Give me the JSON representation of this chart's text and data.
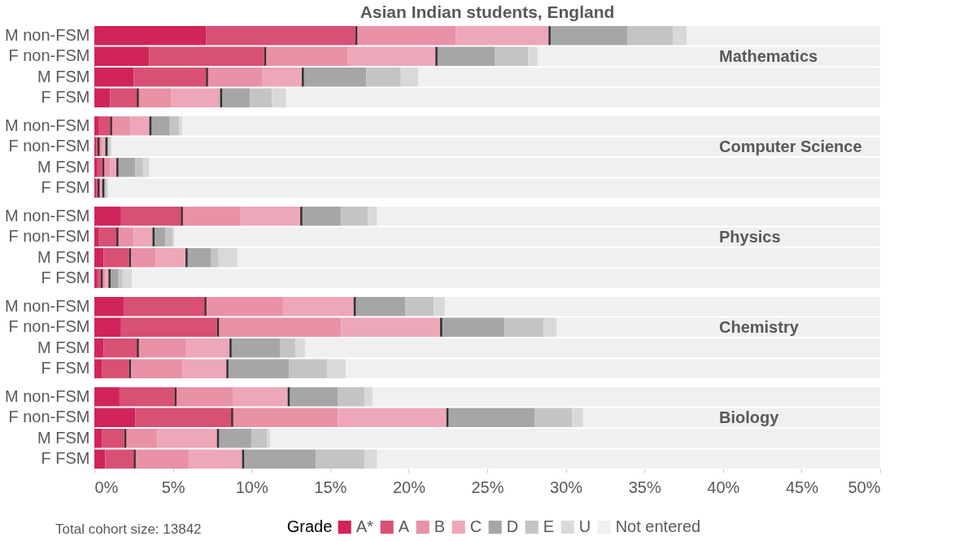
{
  "chart_data": [
    {
      "type": "bar",
      "orientation": "horizontal",
      "stacked": true,
      "title": "Asian Indian students, England",
      "annotations": [
        "Mathematics"
      ],
      "categories": [
        "M non-FSM",
        "F non-FSM",
        "M FSM",
        "F FSM"
      ],
      "xlim": [
        0,
        50
      ],
      "tick_labels": "y",
      "grid": false,
      "legend": false,
      "series": [
        {
          "color": "#d0245a",
          "values": [
            7.1,
            3.5,
            2.5,
            1.0
          ]
        },
        {
          "color": "#d95075",
          "values": [
            9.5,
            7.3,
            4.6,
            1.7
          ]
        },
        {
          "color": "#e891a7",
          "values": [
            6.4,
            5.3,
            3.6,
            2.2
          ]
        },
        {
          "color": "#eda7b9",
          "values": [
            5.9,
            5.6,
            2.5,
            3.1
          ]
        },
        {
          "color": "#a6a6a6",
          "values": [
            5.0,
            3.8,
            4.1,
            1.9
          ]
        },
        {
          "color": "#c4c4c4",
          "values": [
            2.9,
            2.1,
            2.2,
            1.4
          ]
        },
        {
          "color": "#d9d9d9",
          "values": [
            0.9,
            0.6,
            1.1,
            0.9
          ]
        },
        {
          "color": "#f0f0f0",
          "values": [
            12.3,
            21.8,
            29.4,
            37.8
          ]
        }
      ]
    },
    {
      "type": "bar",
      "orientation": "horizontal",
      "stacked": true,
      "annotations": [
        "Computer Science"
      ],
      "categories": [
        "M non-FSM",
        "F non-FSM",
        "M FSM",
        "F FSM"
      ],
      "xlim": [
        0,
        50
      ],
      "tick_labels": "y",
      "grid": false,
      "legend": false,
      "series": [
        {
          "color": "#d0245a",
          "values": [
            0.3,
            0.1,
            0.2,
            0.1
          ]
        },
        {
          "color": "#d95075",
          "values": [
            0.7,
            0.1,
            0.3,
            0.1
          ]
        },
        {
          "color": "#e891a7",
          "values": [
            1.3,
            0.3,
            0.5,
            0.2
          ]
        },
        {
          "color": "#eda7b9",
          "values": [
            1.2,
            0.2,
            0.4,
            0.1
          ]
        },
        {
          "color": "#a6a6a6",
          "values": [
            1.3,
            0.2,
            1.2,
            0.2
          ]
        },
        {
          "color": "#c4c4c4",
          "values": [
            0.6,
            0.1,
            0.5,
            0.1
          ]
        },
        {
          "color": "#d9d9d9",
          "values": [
            0.2,
            0.1,
            0.4,
            0.1
          ]
        },
        {
          "color": "#f0f0f0",
          "values": [
            44.4,
            48.9,
            46.5,
            49.1
          ]
        }
      ]
    },
    {
      "type": "bar",
      "orientation": "horizontal",
      "stacked": true,
      "annotations": [
        "Physics"
      ],
      "categories": [
        "M non-FSM",
        "F non-FSM",
        "M FSM",
        "F FSM"
      ],
      "xlim": [
        0,
        50
      ],
      "tick_labels": "y",
      "grid": false,
      "legend": false,
      "series": [
        {
          "color": "#d0245a",
          "values": [
            1.7,
            0.3,
            0.6,
            0.2
          ]
        },
        {
          "color": "#d95075",
          "values": [
            3.8,
            1.1,
            1.6,
            0.2
          ]
        },
        {
          "color": "#e891a7",
          "values": [
            3.8,
            1.1,
            1.7,
            0.3
          ]
        },
        {
          "color": "#eda7b9",
          "values": [
            3.8,
            1.2,
            1.9,
            0.2
          ]
        },
        {
          "color": "#a6a6a6",
          "values": [
            2.6,
            0.8,
            1.6,
            0.6
          ]
        },
        {
          "color": "#c4c4c4",
          "values": [
            1.7,
            0.5,
            0.5,
            0.3
          ]
        },
        {
          "color": "#d9d9d9",
          "values": [
            0.6,
            0.1,
            1.2,
            0.6
          ]
        },
        {
          "color": "#f0f0f0",
          "values": [
            32.0,
            44.9,
            40.9,
            47.6
          ]
        }
      ]
    },
    {
      "type": "bar",
      "orientation": "horizontal",
      "stacked": true,
      "annotations": [
        "Chemistry"
      ],
      "categories": [
        "M non-FSM",
        "F non-FSM",
        "M FSM",
        "F FSM"
      ],
      "xlim": [
        0,
        50
      ],
      "tick_labels": "y",
      "grid": false,
      "legend": false,
      "series": [
        {
          "color": "#d0245a",
          "values": [
            1.9,
            1.7,
            0.6,
            0.5
          ]
        },
        {
          "color": "#d95075",
          "values": [
            5.1,
            6.1,
            2.1,
            1.7
          ]
        },
        {
          "color": "#e891a7",
          "values": [
            5.0,
            7.9,
            3.1,
            3.4
          ]
        },
        {
          "color": "#eda7b9",
          "values": [
            4.5,
            6.3,
            2.8,
            2.8
          ]
        },
        {
          "color": "#a6a6a6",
          "values": [
            3.3,
            4.1,
            3.2,
            4.0
          ]
        },
        {
          "color": "#c4c4c4",
          "values": [
            1.8,
            2.5,
            1.0,
            2.4
          ]
        },
        {
          "color": "#d9d9d9",
          "values": [
            0.7,
            0.8,
            0.6,
            1.2
          ]
        },
        {
          "color": "#f0f0f0",
          "values": [
            27.7,
            20.6,
            36.6,
            34.0
          ]
        }
      ]
    },
    {
      "type": "bar",
      "orientation": "horizontal",
      "stacked": true,
      "annotations": [
        "Biology",
        "Total cohort size: 13842"
      ],
      "legend_title": "Grade",
      "categories": [
        "M non-FSM",
        "F non-FSM",
        "M FSM",
        "F FSM"
      ],
      "xlim": [
        0,
        50
      ],
      "xticks": [
        {
          "value": 0,
          "label": "0%"
        },
        {
          "value": 5,
          "label": "5%"
        },
        {
          "value": 10,
          "label": "10%"
        },
        {
          "value": 15,
          "label": "15%"
        },
        {
          "value": 20,
          "label": "20%"
        },
        {
          "value": 25,
          "label": "25%"
        },
        {
          "value": 30,
          "label": "30%"
        },
        {
          "value": 35,
          "label": "35%"
        },
        {
          "value": 40,
          "label": "40%"
        },
        {
          "value": 45,
          "label": "45%"
        },
        {
          "value": 50,
          "label": "50%"
        }
      ],
      "grid": false,
      "legend": "bottom",
      "series": [
        {
          "name": "A*",
          "color": "#d0245a",
          "values": [
            1.6,
            2.6,
            0.5,
            0.7
          ]
        },
        {
          "name": "A",
          "color": "#d95075",
          "values": [
            3.5,
            6.1,
            1.4,
            1.8
          ]
        },
        {
          "name": "B",
          "color": "#e891a7",
          "values": [
            3.7,
            6.8,
            2.1,
            3.5
          ]
        },
        {
          "name": "C",
          "color": "#eda7b9",
          "values": [
            3.5,
            6.9,
            3.8,
            3.4
          ]
        },
        {
          "name": "D",
          "color": "#a6a6a6",
          "values": [
            3.2,
            5.6,
            2.2,
            4.7
          ]
        },
        {
          "name": "E",
          "color": "#c4c4c4",
          "values": [
            1.7,
            2.4,
            1.0,
            3.1
          ]
        },
        {
          "name": "U",
          "color": "#d9d9d9",
          "values": [
            0.5,
            0.7,
            0.2,
            0.8
          ]
        },
        {
          "name": "Not entered",
          "color": "#f0f0f0",
          "values": [
            32.3,
            18.9,
            38.8,
            32.0
          ]
        }
      ]
    }
  ]
}
